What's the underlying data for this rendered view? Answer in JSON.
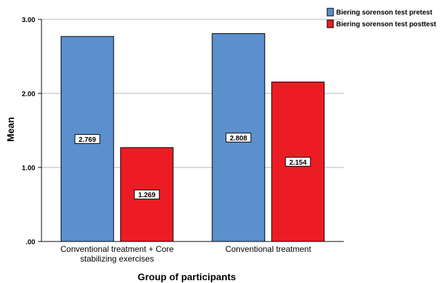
{
  "chart_data": {
    "type": "bar",
    "xlabel": "Group of participants",
    "ylabel": "Mean",
    "ylim": [
      0,
      3
    ],
    "yticks": [
      {
        "value": 0,
        "label": ".00"
      },
      {
        "value": 1,
        "label": "1.00"
      },
      {
        "value": 2,
        "label": "2.00"
      },
      {
        "value": 3,
        "label": "3.00"
      }
    ],
    "grid": true,
    "legend_position": "top-right",
    "categories": [
      [
        "Conventional treatment + Core",
        "stabilizing exercises"
      ],
      [
        "Conventional treatment"
      ]
    ],
    "series": [
      {
        "name": "Biering sorenson test pretest",
        "color": "#5b8fcd",
        "values": [
          2.769,
          2.808
        ],
        "labels": [
          "2.769",
          "2.808"
        ]
      },
      {
        "name": "Biering sorenson test posttest",
        "color": "#ed1c24",
        "values": [
          1.269,
          2.154
        ],
        "labels": [
          "1.269",
          "2.154"
        ]
      }
    ]
  }
}
